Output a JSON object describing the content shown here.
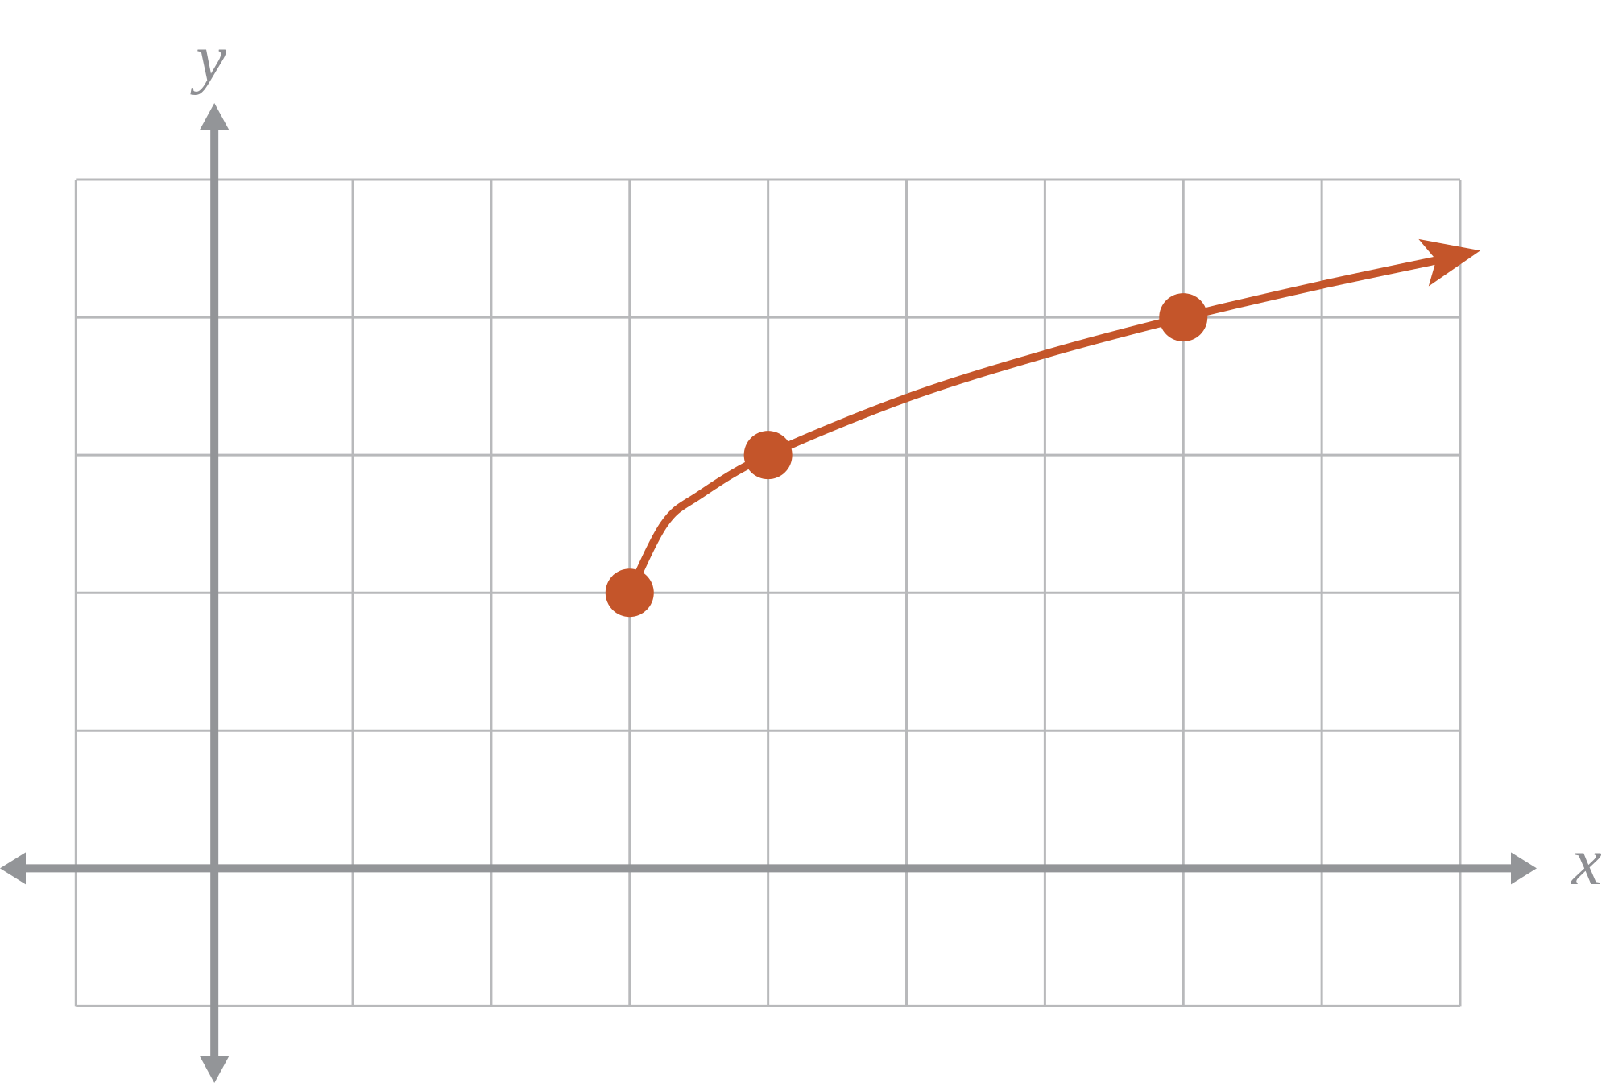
{
  "chart_data": {
    "type": "line",
    "x_label": "x",
    "y_label": "y",
    "x": [
      3,
      3.25,
      3.5,
      4,
      5,
      6,
      7,
      8,
      9
    ],
    "values": [
      2,
      2.5,
      2.707,
      3,
      3.414,
      3.732,
      4,
      4.236,
      4.449
    ],
    "color": "#c4552a",
    "points": {
      "x": [
        3,
        4,
        7
      ],
      "values": [
        2,
        3,
        4
      ]
    },
    "xlim": [
      -1,
      9
    ],
    "ylim": [
      -1,
      5
    ],
    "xticks": [
      -1,
      0,
      1,
      2,
      3,
      4,
      5,
      6,
      7,
      8,
      9
    ],
    "yticks": [
      -1,
      0,
      1,
      2,
      3,
      4,
      5
    ],
    "grid": true
  }
}
